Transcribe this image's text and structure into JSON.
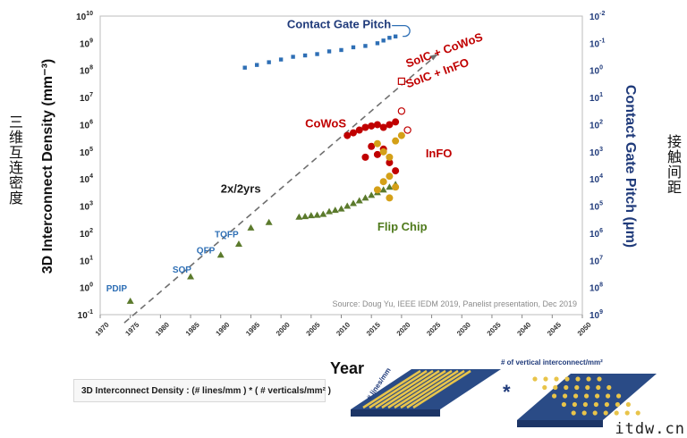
{
  "chart_data": {
    "type": "scatter",
    "title": "",
    "xlabel": "Year",
    "ylabel": "3D Interconnect Density (mm⁻³)",
    "ylabel_cn": "三维互连密度",
    "y2label": "Contact Gate Pitch (μm)",
    "y2label_cn": "接触间距",
    "xlim": [
      1970,
      2050
    ],
    "ylim_log10": [
      -1,
      10
    ],
    "x_ticks": [
      "1970",
      "1975",
      "1980",
      "1985",
      "1990",
      "1995",
      "2000",
      "2005",
      "2010",
      "2015",
      "2020",
      "2025",
      "2030",
      "2035",
      "2040",
      "2045",
      "2050"
    ],
    "y_ticks": [
      {
        "base": "10",
        "exp": "10"
      },
      {
        "base": "10",
        "exp": "9"
      },
      {
        "base": "10",
        "exp": "8"
      },
      {
        "base": "10",
        "exp": "7"
      },
      {
        "base": "10",
        "exp": "6"
      },
      {
        "base": "10",
        "exp": "5"
      },
      {
        "base": "10",
        "exp": "4"
      },
      {
        "base": "10",
        "exp": "3"
      },
      {
        "base": "10",
        "exp": "2"
      },
      {
        "base": "10",
        "exp": "1"
      },
      {
        "base": "10",
        "exp": "0"
      },
      {
        "base": "10",
        "exp": "-1"
      }
    ],
    "y2_ticks": [
      {
        "base": "10",
        "exp": "-2"
      },
      {
        "base": "10",
        "exp": "-1"
      },
      {
        "base": "10",
        "exp": "0"
      },
      {
        "base": "10",
        "exp": "1"
      },
      {
        "base": "10",
        "exp": "2"
      },
      {
        "base": "10",
        "exp": "3"
      },
      {
        "base": "10",
        "exp": "4"
      },
      {
        "base": "10",
        "exp": "5"
      },
      {
        "base": "10",
        "exp": "6"
      },
      {
        "base": "10",
        "exp": "7"
      },
      {
        "base": "10",
        "exp": "8"
      },
      {
        "base": "10",
        "exp": "9"
      }
    ],
    "source": "Source: Doug Yu, IEEE IEDM 2019, Panelist presentation, Dec 2019",
    "trend_label": "2x/2yrs",
    "trend_line": {
      "x": [
        1974,
        2026
      ],
      "log10_y": [
        -1.3,
        8.6
      ]
    },
    "series": [
      {
        "name": "Contact Gate Pitch",
        "color": "#2e6fb5",
        "marker": "square",
        "points": [
          [
            1994,
            8.1
          ],
          [
            1996,
            8.2
          ],
          [
            1998,
            8.3
          ],
          [
            2000,
            8.4
          ],
          [
            2002,
            8.5
          ],
          [
            2004,
            8.55
          ],
          [
            2006,
            8.6
          ],
          [
            2008,
            8.7
          ],
          [
            2010,
            8.75
          ],
          [
            2012,
            8.85
          ],
          [
            2014,
            8.9
          ],
          [
            2016,
            9.0
          ],
          [
            2017,
            9.1
          ],
          [
            2018,
            9.2
          ],
          [
            2019,
            9.25
          ]
        ]
      },
      {
        "name": "Flip Chip",
        "color": "#5b7a2c",
        "marker": "triangle",
        "points": [
          [
            1975,
            -0.5
          ],
          [
            1985,
            0.4
          ],
          [
            1990,
            1.2
          ],
          [
            1993,
            1.6
          ],
          [
            1995,
            2.2
          ],
          [
            1998,
            2.4
          ],
          [
            2003,
            2.6
          ],
          [
            2004,
            2.62
          ],
          [
            2005,
            2.65
          ],
          [
            2006,
            2.67
          ],
          [
            2007,
            2.7
          ],
          [
            2008,
            2.8
          ],
          [
            2009,
            2.85
          ],
          [
            2010,
            2.9
          ],
          [
            2011,
            3.0
          ],
          [
            2012,
            3.1
          ],
          [
            2013,
            3.2
          ],
          [
            2014,
            3.3
          ],
          [
            2015,
            3.4
          ],
          [
            2016,
            3.5
          ],
          [
            2017,
            3.6
          ],
          [
            2018,
            3.7
          ],
          [
            2019,
            3.8
          ]
        ]
      },
      {
        "name": "CoWoS",
        "color": "#c00000",
        "marker": "circle",
        "points": [
          [
            2011,
            5.6
          ],
          [
            2012,
            5.7
          ],
          [
            2013,
            5.8
          ],
          [
            2014,
            5.9
          ],
          [
            2015,
            5.95
          ],
          [
            2016,
            6.0
          ],
          [
            2017,
            5.9
          ],
          [
            2018,
            6.0
          ],
          [
            2019,
            6.1
          ],
          [
            2014,
            4.8
          ],
          [
            2015,
            5.2
          ],
          [
            2016,
            4.9
          ],
          [
            2017,
            5.1
          ],
          [
            2018,
            4.6
          ],
          [
            2019,
            4.3
          ]
        ]
      },
      {
        "name": "InFO",
        "color": "#d4a017",
        "marker": "circle",
        "points": [
          [
            2016,
            5.3
          ],
          [
            2017,
            5.0
          ],
          [
            2018,
            4.8
          ],
          [
            2019,
            5.4
          ],
          [
            2020,
            5.6
          ],
          [
            2016,
            3.6
          ],
          [
            2017,
            3.9
          ],
          [
            2018,
            4.1
          ],
          [
            2019,
            3.7
          ],
          [
            2018,
            3.3
          ]
        ]
      },
      {
        "name": "SoIC + CoWoS",
        "color": "#c00000",
        "marker": "open-square",
        "points": [
          [
            2020,
            7.6
          ]
        ]
      },
      {
        "name": "SoIC + InFO",
        "color": "#c00000",
        "marker": "open-circle",
        "points": [
          [
            2020,
            6.5
          ],
          [
            2021,
            5.8
          ]
        ]
      }
    ],
    "annotations": [
      {
        "text": "Contact Gate Pitch",
        "color": "#1f3a7a",
        "x": 2001,
        "log10_y": 9.55
      },
      {
        "text": "SoIC + CoWoS",
        "color": "#c00000",
        "x": 2021,
        "log10_y": 8.1,
        "rotate": -20
      },
      {
        "text": "SoIC + InFO",
        "color": "#c00000",
        "x": 2021,
        "log10_y": 7.35,
        "rotate": -20
      },
      {
        "text": "CoWoS",
        "color": "#c00000",
        "x": 2004,
        "log10_y": 5.9
      },
      {
        "text": "InFO",
        "color": "#c00000",
        "x": 2024,
        "log10_y": 4.8
      },
      {
        "text": "2x/2yrs",
        "color": "#1a1a1a",
        "x": 1990,
        "log10_y": 3.5
      },
      {
        "text": "Flip Chip",
        "color": "#4f7a1c",
        "x": 2016,
        "log10_y": 2.1
      },
      {
        "text": "TQFP",
        "color": "#2e6fb5",
        "x": 1989,
        "log10_y": 1.85
      },
      {
        "text": "QFP",
        "color": "#2e6fb5",
        "x": 1986,
        "log10_y": 1.25
      },
      {
        "text": "SOP",
        "color": "#2e6fb5",
        "x": 1982,
        "log10_y": 0.55
      },
      {
        "text": "PDIP",
        "color": "#2e6fb5",
        "x": 1971,
        "log10_y": -0.15
      }
    ],
    "grid": false,
    "legend": "none"
  },
  "diagram": {
    "formula_label": "3D Interconnect Density : (",
    "lines_label": "# lines/mm",
    "verticals_label": "# of vertical interconnect/mm²",
    "operator": "*"
  },
  "watermark": "itdw.cn"
}
